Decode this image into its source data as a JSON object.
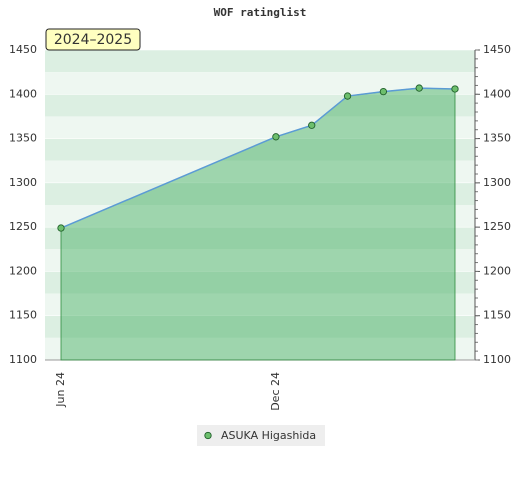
{
  "chart_data": {
    "type": "area",
    "title": "WOF ratinglist",
    "annotation": "2024–2025",
    "x": [
      "2024-06",
      "2024-12",
      "2025-01",
      "2025-02",
      "2025-03",
      "2025-04",
      "2025-05"
    ],
    "xlim": [
      "2024-06",
      "2025-05"
    ],
    "xticks": [
      {
        "value": "2024-06",
        "label": "Jun 24"
      },
      {
        "value": "2024-12",
        "label": "Dec 24"
      }
    ],
    "series": [
      {
        "name": "ASUKA Higashida",
        "color": "#5b9bd5",
        "values": [
          1249,
          1352,
          1365,
          1398,
          1403,
          1407,
          1406
        ]
      }
    ],
    "ylim": [
      1100,
      1450
    ],
    "yticks": [
      1100,
      1150,
      1200,
      1250,
      1300,
      1350,
      1400,
      1450
    ],
    "grid": true
  }
}
